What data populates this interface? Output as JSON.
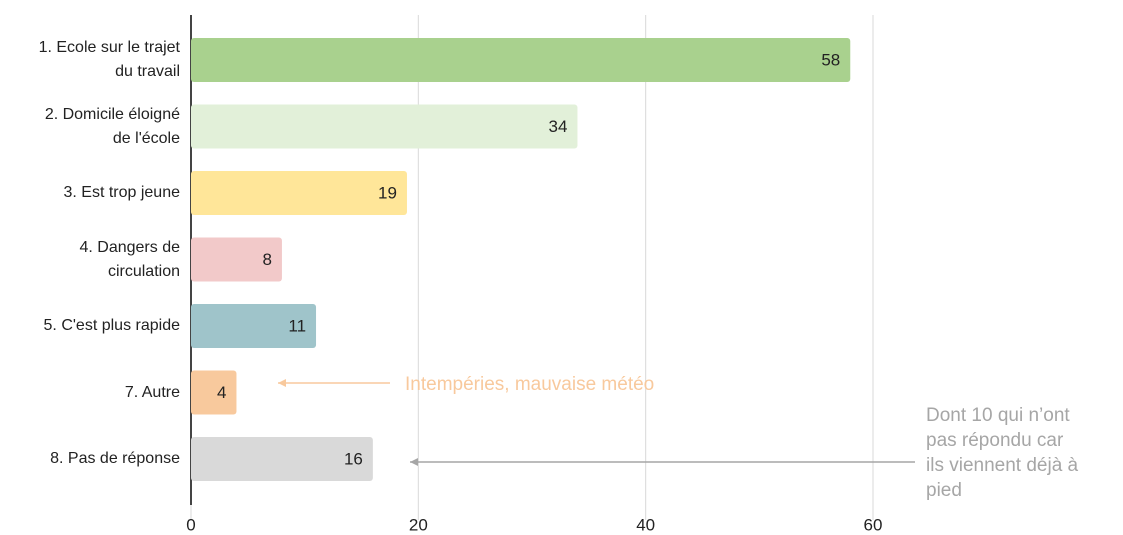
{
  "chart_data": {
    "type": "barh",
    "categories": [
      "1. Ecole sur le trajet\ndu travail",
      "2. Domicile éloigné\nde l'école",
      "3. Est trop jeune",
      "4. Dangers de\ncirculation",
      "5. C'est plus rapide",
      "7. Autre",
      "8. Pas de réponse"
    ],
    "values": [
      58,
      34,
      19,
      8,
      11,
      4,
      16
    ],
    "colors": [
      "#a9d18e",
      "#e2f0d9",
      "#ffe699",
      "#f2c9c9",
      "#9fc4ca",
      "#f8c99d",
      "#d9d9d9"
    ],
    "xlim": [
      0,
      60
    ],
    "xticks": [
      0,
      20,
      40,
      60
    ],
    "grid": true,
    "annotations": [
      "Intempéries, mauvaise météo",
      "Dont 10 qui n’ont\npas répondu car\nils viennent déjà à\npied"
    ]
  }
}
